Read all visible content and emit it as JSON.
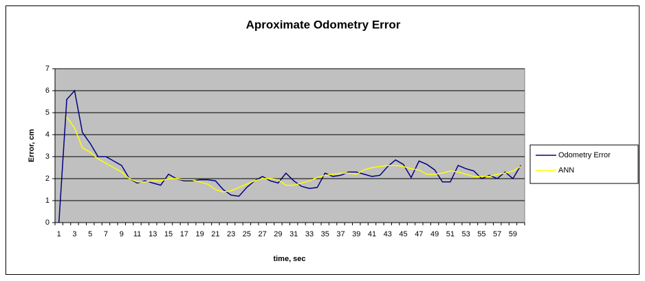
{
  "chart_data": {
    "type": "line",
    "title": "Aproximate Odometry Error",
    "x_label": "time, sec",
    "y_label": "Error, cm",
    "categories": [
      1,
      null,
      3,
      null,
      5,
      null,
      7,
      null,
      9,
      null,
      11,
      null,
      13,
      null,
      15,
      null,
      17,
      null,
      19,
      null,
      21,
      null,
      23,
      null,
      25,
      null,
      27,
      null,
      29,
      null,
      31,
      null,
      33,
      null,
      35,
      null,
      37,
      null,
      39,
      null,
      41,
      null,
      43,
      null,
      45,
      null,
      47,
      null,
      49,
      null,
      51,
      null,
      53,
      null,
      55,
      null,
      57,
      null,
      59,
      null
    ],
    "series": [
      {
        "name": "Odometry Error",
        "color": "#000080",
        "values": [
          0,
          5.6,
          6.0,
          4.1,
          3.6,
          3.0,
          3.0,
          2.8,
          2.6,
          2.0,
          1.8,
          1.9,
          1.8,
          1.7,
          2.2,
          2.0,
          1.9,
          1.9,
          1.95,
          1.95,
          1.9,
          1.5,
          1.25,
          1.2,
          1.6,
          1.9,
          2.1,
          1.9,
          1.8,
          2.25,
          1.9,
          1.65,
          1.55,
          1.6,
          2.25,
          2.1,
          2.15,
          2.3,
          2.3,
          2.2,
          2.1,
          2.15,
          2.55,
          2.85,
          2.65,
          2.05,
          2.8,
          2.65,
          2.4,
          1.85,
          1.85,
          2.6,
          2.45,
          2.35,
          2.0,
          2.15,
          2.0,
          2.3,
          2.0,
          2.6
        ]
      },
      {
        "name": "ANN",
        "color": "#ffff00",
        "values": [
          null,
          4.8,
          4.3,
          3.4,
          3.2,
          2.9,
          2.7,
          2.5,
          2.3,
          2.0,
          1.85,
          1.85,
          1.9,
          1.9,
          2.0,
          2.0,
          1.95,
          1.95,
          1.85,
          1.75,
          1.5,
          1.4,
          1.45,
          1.6,
          1.75,
          1.9,
          2.0,
          2.0,
          1.95,
          1.7,
          1.7,
          1.8,
          1.9,
          2.05,
          2.15,
          2.2,
          2.25,
          2.25,
          2.2,
          2.4,
          2.5,
          2.55,
          2.6,
          2.6,
          2.55,
          2.45,
          2.4,
          2.2,
          2.2,
          2.25,
          2.35,
          2.3,
          2.2,
          2.1,
          2.1,
          2.1,
          2.2,
          2.25,
          2.35,
          2.55
        ]
      }
    ],
    "ylim": [
      0,
      7
    ],
    "yticks": [
      0,
      1,
      2,
      3,
      4,
      5,
      6,
      7
    ],
    "grid": true,
    "legend": "right",
    "plot_color": "#c0c0c0"
  }
}
